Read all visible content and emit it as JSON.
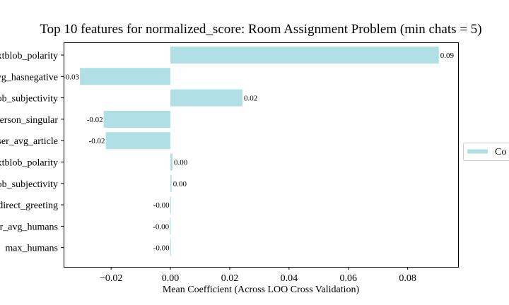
{
  "chart_data": {
    "type": "bar",
    "orientation": "horizontal",
    "title": "Top 10 features for normalized_score: Room Assignment Problem (min chats = 5)",
    "xlabel": "Mean Coefficient (Across LOO Cross Validation)",
    "ylabel": "",
    "xlim": [
      -0.036,
      0.097
    ],
    "xticks": [
      -0.02,
      0.0,
      0.02,
      0.04,
      0.06,
      0.08
    ],
    "xtick_labels": [
      "−0.02",
      "0.00",
      "0.02",
      "0.04",
      "0.06",
      "0.08"
    ],
    "grid": false,
    "categories": [
      "xtblob_polarity",
      "vg_hasnegative",
      "ob_subjectivity",
      "erson_singular",
      "ser_avg_article",
      "xtblob_polarity",
      "ob_subjectivity",
      "direct_greeting",
      "r_avg_humans",
      "max_humans"
    ],
    "values": [
      0.0905,
      -0.0305,
      0.0243,
      -0.0225,
      -0.0218,
      0.0007,
      0.0004,
      -0.0001,
      -0.0002,
      -0.0001
    ],
    "data_labels": [
      "0.09",
      "-0.03",
      "0.02",
      "-0.02",
      "-0.02",
      "0.00",
      "0.00",
      "-0.00",
      "-0.00",
      "-0.00"
    ],
    "bar_color": "#b0e0e6",
    "legend": {
      "placement": "right",
      "entries": [
        "Co"
      ]
    }
  }
}
